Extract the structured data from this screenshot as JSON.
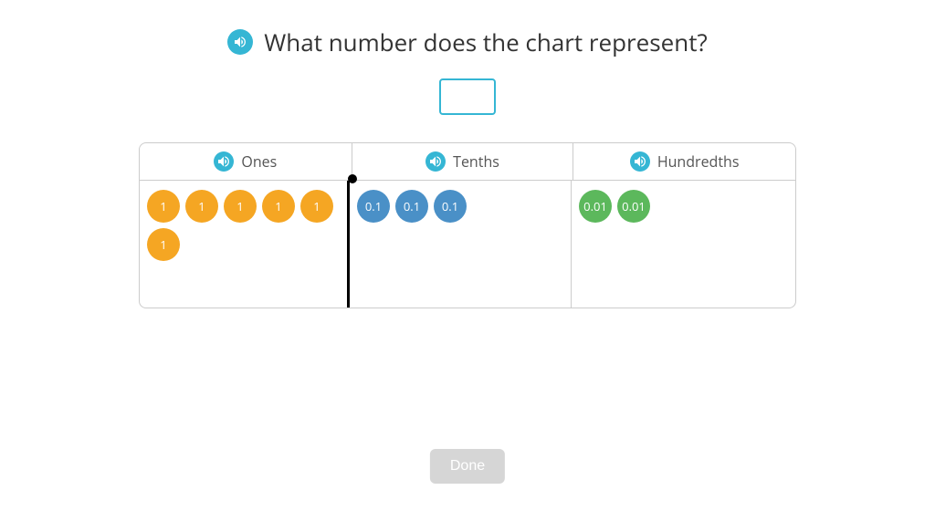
{
  "colors": {
    "speaker_bg": "#35b6d4",
    "text": "#333333",
    "border": "#cccccc",
    "done_bg": "#d6d6d6",
    "done_text": "#ffffff",
    "input_border": "#35b6d4"
  },
  "question": {
    "text": "What number does the chart represent?"
  },
  "input": {
    "value": ""
  },
  "chart": {
    "columns": [
      {
        "label": "Ones",
        "chip_color": "#f5a623",
        "chip_text_color": "#ffffff",
        "chips": [
          "1",
          "1",
          "1",
          "1",
          "1",
          "1"
        ]
      },
      {
        "label": "Tenths",
        "chip_color": "#4a90c7",
        "chip_text_color": "#ffffff",
        "chips": [
          "0.1",
          "0.1",
          "0.1"
        ]
      },
      {
        "label": "Hundredths",
        "chip_color": "#5cb85c",
        "chip_text_color": "#ffffff",
        "chips": [
          "0.01",
          "0.01"
        ]
      }
    ]
  },
  "done": {
    "label": "Done"
  }
}
